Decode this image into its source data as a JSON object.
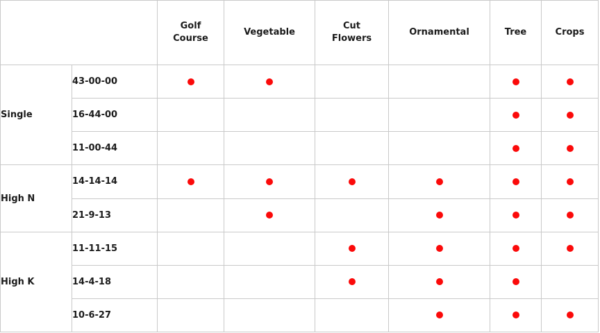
{
  "chart_data": {
    "type": "table",
    "columns": [
      "Golf Course",
      "Vegetable",
      "Cut Flowers",
      "Ornamental",
      "Tree",
      "Crops"
    ],
    "row_groups": [
      {
        "label": "Single",
        "rows": [
          {
            "formula": "43-00-00",
            "dots": [
              1,
              1,
              0,
              0,
              1,
              1
            ]
          },
          {
            "formula": "16-44-00",
            "dots": [
              0,
              0,
              0,
              0,
              1,
              1
            ]
          },
          {
            "formula": "11-00-44",
            "dots": [
              0,
              0,
              0,
              0,
              1,
              1
            ]
          }
        ]
      },
      {
        "label": "High N",
        "rows": [
          {
            "formula": "14-14-14",
            "dots": [
              1,
              1,
              1,
              1,
              1,
              1
            ]
          },
          {
            "formula": "21-9-13",
            "dots": [
              0,
              1,
              0,
              1,
              1,
              1
            ]
          }
        ]
      },
      {
        "label": "High K",
        "rows": [
          {
            "formula": "11-11-15",
            "dots": [
              0,
              0,
              1,
              1,
              1,
              1
            ]
          },
          {
            "formula": "14-4-18",
            "dots": [
              0,
              0,
              1,
              1,
              1,
              0
            ]
          },
          {
            "formula": "10-6-27",
            "dots": [
              0,
              0,
              0,
              1,
              1,
              1
            ]
          }
        ]
      }
    ],
    "marker": "red-dot",
    "colors": {
      "dot": "#fb0a0a",
      "border": "#c9c9c9",
      "text": "#1b1b1b"
    }
  }
}
